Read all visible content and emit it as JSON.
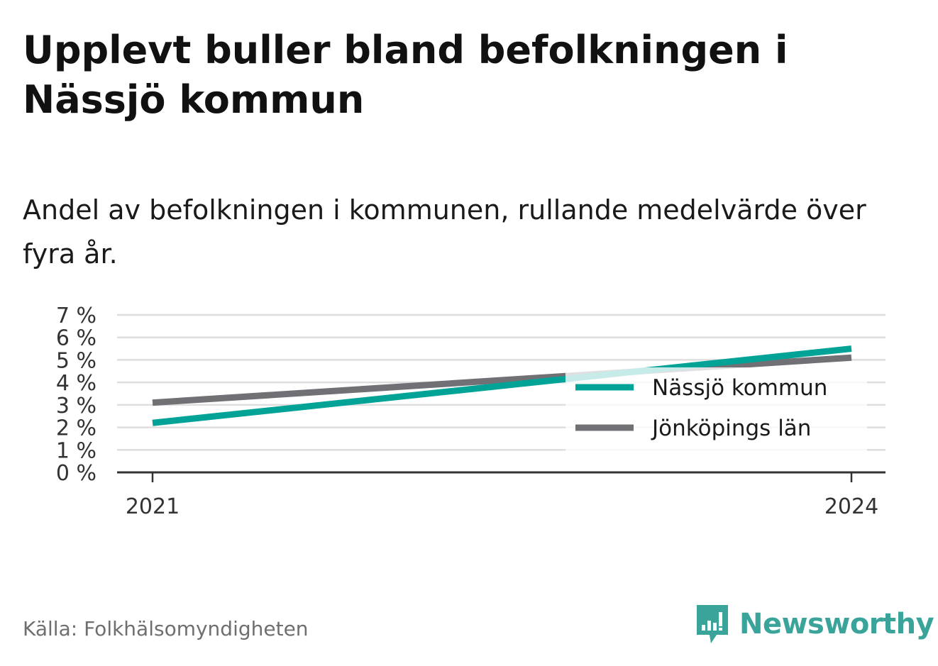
{
  "title": "Upplevt buller bland befolkningen i Nässjö kommun",
  "subtitle": "Andel av befolkningen i kommunen, rullande medelvärde över fyra år.",
  "source": "Källa: Folkhälsomyndigheten",
  "brand": {
    "name": "Newsworthy",
    "icon": "newsworthy-logo-icon",
    "color": "#3aa39a"
  },
  "chart_data": {
    "type": "line",
    "x": [
      2021,
      2024
    ],
    "x_tick_labels": [
      "2021",
      "2024"
    ],
    "y_ticks": [
      0,
      1,
      2,
      3,
      4,
      5,
      6,
      7
    ],
    "y_tick_labels": [
      "0 %",
      "1 %",
      "2 %",
      "3 %",
      "4 %",
      "5 %",
      "6 %",
      "7 %"
    ],
    "ylim": [
      0,
      7
    ],
    "grid": true,
    "legend_position": "bottom-right",
    "series": [
      {
        "name": "Nässjö kommun",
        "color": "#00a396",
        "values": [
          2.2,
          5.5
        ]
      },
      {
        "name": "Jönköpings län",
        "color": "#717075",
        "values": [
          3.1,
          5.1
        ]
      }
    ]
  }
}
